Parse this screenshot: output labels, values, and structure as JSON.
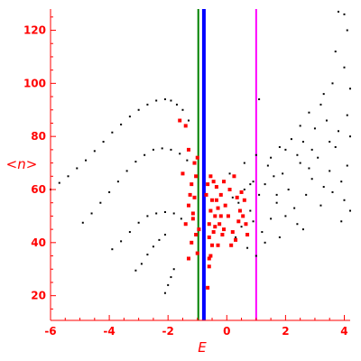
{
  "chart_data": {
    "type": "scatter",
    "title": "",
    "xlabel": "E",
    "ylabel": "<n>",
    "xlim": [
      -6,
      4.2
    ],
    "ylim": [
      10.7,
      128
    ],
    "xticks": [
      "-6",
      "-4",
      "-2",
      "0",
      "2",
      "4"
    ],
    "yticks": [
      "20",
      "40",
      "60",
      "80",
      "100",
      "120"
    ],
    "grid": false,
    "colors": {
      "axes": "#ff0000",
      "black_points": "#000000",
      "red_points": "#ff0000",
      "line_green": "#008000",
      "line_blue": "#0000ff",
      "line_magenta": "#ff00ff"
    },
    "vertical_lines": [
      {
        "x": -0.97,
        "color": "#008000"
      },
      {
        "x": -0.78,
        "color": "#0000ff"
      },
      {
        "x": 1.0,
        "color": "#ff00ff"
      }
    ],
    "series": [
      {
        "color": "#000000",
        "points": [
          [
            -6.0,
            60
          ],
          [
            -5.7,
            62.5
          ],
          [
            -5.4,
            65
          ],
          [
            -5.1,
            68
          ],
          [
            -4.8,
            71
          ],
          [
            -4.5,
            74.5
          ],
          [
            -4.2,
            78
          ],
          [
            -3.9,
            81.5
          ],
          [
            -3.6,
            84.5
          ],
          [
            -3.3,
            87.5
          ],
          [
            -3.0,
            90
          ],
          [
            -2.7,
            92
          ],
          [
            -2.4,
            93.5
          ],
          [
            -2.1,
            94
          ],
          [
            -1.9,
            93.5
          ],
          [
            -1.7,
            92
          ],
          [
            -1.5,
            90
          ],
          [
            -1.3,
            86
          ],
          [
            -4.9,
            47.5
          ],
          [
            -4.6,
            51
          ],
          [
            -4.3,
            55
          ],
          [
            -4.0,
            59
          ],
          [
            -3.7,
            63
          ],
          [
            -3.4,
            67
          ],
          [
            -3.1,
            70.5
          ],
          [
            -2.8,
            73
          ],
          [
            -2.5,
            75
          ],
          [
            -2.2,
            75.5
          ],
          [
            -1.9,
            75
          ],
          [
            -1.6,
            73.5
          ],
          [
            -1.35,
            71
          ],
          [
            -3.9,
            37.5
          ],
          [
            -3.6,
            40.5
          ],
          [
            -3.3,
            44
          ],
          [
            -3.0,
            47.5
          ],
          [
            -2.7,
            50
          ],
          [
            -2.4,
            51
          ],
          [
            -2.1,
            51.5
          ],
          [
            -1.8,
            51
          ],
          [
            -1.55,
            49
          ],
          [
            -3.1,
            29.5
          ],
          [
            -2.9,
            32
          ],
          [
            -2.7,
            35.5
          ],
          [
            -2.5,
            38.5
          ],
          [
            -2.3,
            41
          ],
          [
            -2.1,
            43
          ],
          [
            -2.1,
            21
          ],
          [
            -2.0,
            24
          ],
          [
            -1.9,
            27
          ],
          [
            -1.8,
            30
          ],
          [
            0.2,
            57
          ],
          [
            0.4,
            55
          ],
          [
            0.6,
            60
          ],
          [
            0.8,
            52
          ],
          [
            1.1,
            58
          ],
          [
            1.3,
            62
          ],
          [
            1.5,
            49
          ],
          [
            1.7,
            55
          ],
          [
            1.9,
            66
          ],
          [
            2.1,
            60
          ],
          [
            2.3,
            53
          ],
          [
            2.5,
            70
          ],
          [
            2.7,
            58
          ],
          [
            2.9,
            64
          ],
          [
            3.1,
            72
          ],
          [
            3.3,
            61
          ],
          [
            3.5,
            67
          ],
          [
            3.7,
            76
          ],
          [
            3.9,
            63
          ],
          [
            4.1,
            69
          ],
          [
            0.5,
            46
          ],
          [
            0.9,
            63
          ],
          [
            1.2,
            44
          ],
          [
            1.6,
            65
          ],
          [
            2.0,
            50
          ],
          [
            2.4,
            47
          ],
          [
            2.8,
            68
          ],
          [
            3.2,
            54
          ],
          [
            3.6,
            59
          ],
          [
            4.0,
            56
          ],
          [
            1.0,
            73
          ],
          [
            1.4,
            69
          ],
          [
            1.8,
            76
          ],
          [
            2.2,
            79
          ],
          [
            2.6,
            78
          ],
          [
            3.0,
            83
          ],
          [
            3.4,
            86
          ],
          [
            3.8,
            82
          ],
          [
            4.2,
            80
          ],
          [
            2.5,
            84
          ],
          [
            1.1,
            94
          ],
          [
            2.8,
            89
          ],
          [
            3.6,
            100
          ],
          [
            4.0,
            106
          ],
          [
            3.7,
            112
          ],
          [
            4.1,
            120
          ],
          [
            3.8,
            127
          ],
          [
            4.0,
            126
          ],
          [
            3.3,
            96
          ],
          [
            4.2,
            98
          ],
          [
            0.7,
            38
          ],
          [
            1.0,
            35
          ],
          [
            1.3,
            40
          ],
          [
            0.3,
            42
          ],
          [
            0.9,
            48
          ],
          [
            1.8,
            42
          ],
          [
            2.6,
            45
          ],
          [
            3.9,
            48
          ],
          [
            4.2,
            52
          ],
          [
            0.1,
            66
          ],
          [
            0.6,
            70
          ],
          [
            1.5,
            72
          ],
          [
            2.0,
            75
          ],
          [
            2.9,
            75
          ],
          [
            3.5,
            78
          ],
          [
            4.1,
            88
          ],
          [
            3.2,
            92
          ],
          [
            2.4,
            73
          ],
          [
            1.7,
            58
          ],
          [
            0.8,
            62
          ]
        ]
      },
      {
        "color": "#ff0000",
        "points": [
          [
            -1.6,
            86
          ],
          [
            -1.4,
            84
          ],
          [
            -1.3,
            75
          ],
          [
            -1.5,
            66
          ],
          [
            -1.2,
            62
          ],
          [
            -1.1,
            57
          ],
          [
            -1.3,
            54
          ],
          [
            -1.15,
            49
          ],
          [
            -1.4,
            47
          ],
          [
            -1.05,
            43
          ],
          [
            -1.2,
            40
          ],
          [
            -1.0,
            36
          ],
          [
            -1.3,
            34
          ],
          [
            -0.6,
            31
          ],
          [
            -0.55,
            35
          ],
          [
            -0.5,
            39
          ],
          [
            -0.45,
            44
          ],
          [
            -0.6,
            47
          ],
          [
            -0.4,
            50
          ],
          [
            -0.3,
            53
          ],
          [
            -0.5,
            56
          ],
          [
            -0.2,
            58
          ],
          [
            -0.35,
            61
          ],
          [
            -0.1,
            63
          ],
          [
            0.1,
            60
          ],
          [
            0.25,
            65
          ],
          [
            0.4,
            48
          ],
          [
            0.45,
            52
          ],
          [
            0.2,
            44
          ],
          [
            0.6,
            56
          ],
          [
            0.7,
            43
          ],
          [
            0.55,
            50
          ],
          [
            -0.65,
            62
          ],
          [
            -0.7,
            58
          ],
          [
            -0.55,
            52
          ],
          [
            -0.6,
            42
          ],
          [
            -0.65,
            23
          ],
          [
            -1.05,
            65
          ],
          [
            -1.1,
            70
          ],
          [
            -0.25,
            47
          ],
          [
            -0.05,
            54
          ],
          [
            0.05,
            50
          ],
          [
            -0.15,
            43
          ],
          [
            0.35,
            57
          ],
          [
            -0.3,
            39
          ],
          [
            -0.45,
            63
          ],
          [
            -0.55,
            65
          ],
          [
            -0.6,
            34
          ],
          [
            -1.0,
            72
          ],
          [
            -0.95,
            45
          ],
          [
            -0.4,
            46
          ],
          [
            0.15,
            39
          ],
          [
            0.3,
            41
          ],
          [
            0.5,
            59
          ],
          [
            -0.2,
            50
          ],
          [
            -0.1,
            45
          ],
          [
            -1.25,
            58
          ],
          [
            -1.15,
            51
          ],
          [
            0.65,
            47
          ],
          [
            -0.35,
            56
          ]
        ]
      }
    ]
  }
}
